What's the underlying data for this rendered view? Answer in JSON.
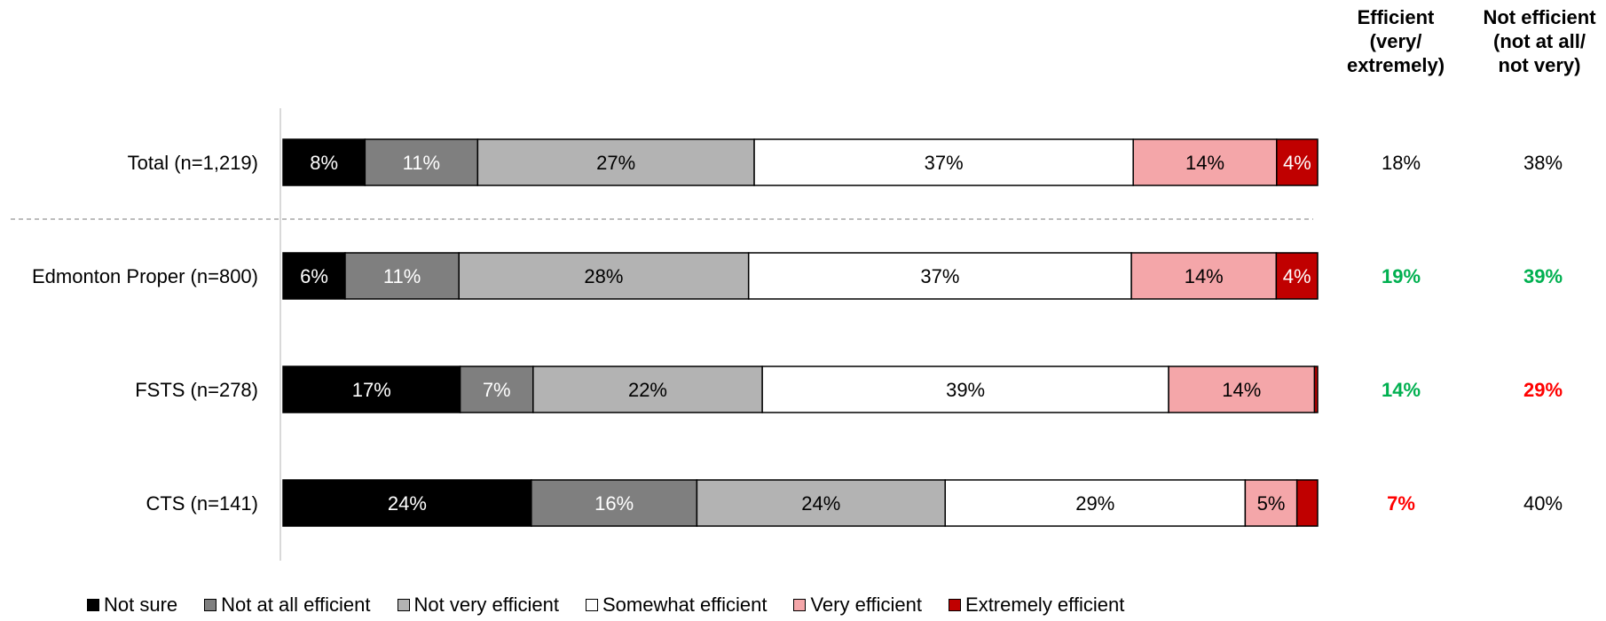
{
  "chart_data": {
    "type": "bar",
    "orientation": "horizontal",
    "stacked": true,
    "categories": [
      "Total (n=1,219)",
      "Edmonton Proper (n=800)",
      "FSTS (n=278)",
      "CTS (n=141)"
    ],
    "series": [
      {
        "name": "Not sure",
        "color": "#000000",
        "label_color": "#ffffff",
        "values": [
          8,
          6,
          17,
          24
        ],
        "labels": [
          "8%",
          "6%",
          "17%",
          "24%"
        ]
      },
      {
        "name": "Not at all efficient",
        "color": "#7f7f7f",
        "label_color": "#ffffff",
        "values": [
          11,
          11,
          7,
          16
        ],
        "labels": [
          "11%",
          "11%",
          "7%",
          "16%"
        ]
      },
      {
        "name": "Not very efficient",
        "color": "#b3b3b3",
        "label_color": "#000000",
        "values": [
          27,
          28,
          22,
          24
        ],
        "labels": [
          "27%",
          "28%",
          "22%",
          "24%"
        ]
      },
      {
        "name": "Somewhat efficient",
        "color": "#ffffff",
        "label_color": "#000000",
        "values": [
          37,
          37,
          39,
          29
        ],
        "labels": [
          "37%",
          "37%",
          "39%",
          "29%"
        ]
      },
      {
        "name": "Very efficient",
        "color": "#f4a6a9",
        "label_color": "#000000",
        "values": [
          14,
          14,
          14,
          5
        ],
        "labels": [
          "14%",
          "14%",
          "14%",
          "5%"
        ]
      },
      {
        "name": "Extremely efficient",
        "color": "#c00000",
        "label_color": "#ffffff",
        "values": [
          4,
          4,
          0.3,
          2
        ],
        "labels": [
          "4%",
          "4%",
          "",
          ""
        ]
      }
    ],
    "xlim": [
      0,
      100
    ],
    "grid": false,
    "legend_position": "bottom",
    "separator_after_category": 0,
    "summary_columns": [
      {
        "header": "Efficient\n(very/\nextremely)",
        "values": [
          "18%",
          "19%",
          "14%",
          "7%"
        ],
        "colors": [
          "#000000",
          "#00b050",
          "#00b050",
          "#ff0000"
        ],
        "bold": [
          false,
          true,
          true,
          true
        ]
      },
      {
        "header": "Not efficient\n(not at all/\nnot very)",
        "values": [
          "38%",
          "39%",
          "29%",
          "40%"
        ],
        "colors": [
          "#000000",
          "#00b050",
          "#ff0000",
          "#000000"
        ],
        "bold": [
          false,
          true,
          true,
          false
        ]
      }
    ]
  }
}
